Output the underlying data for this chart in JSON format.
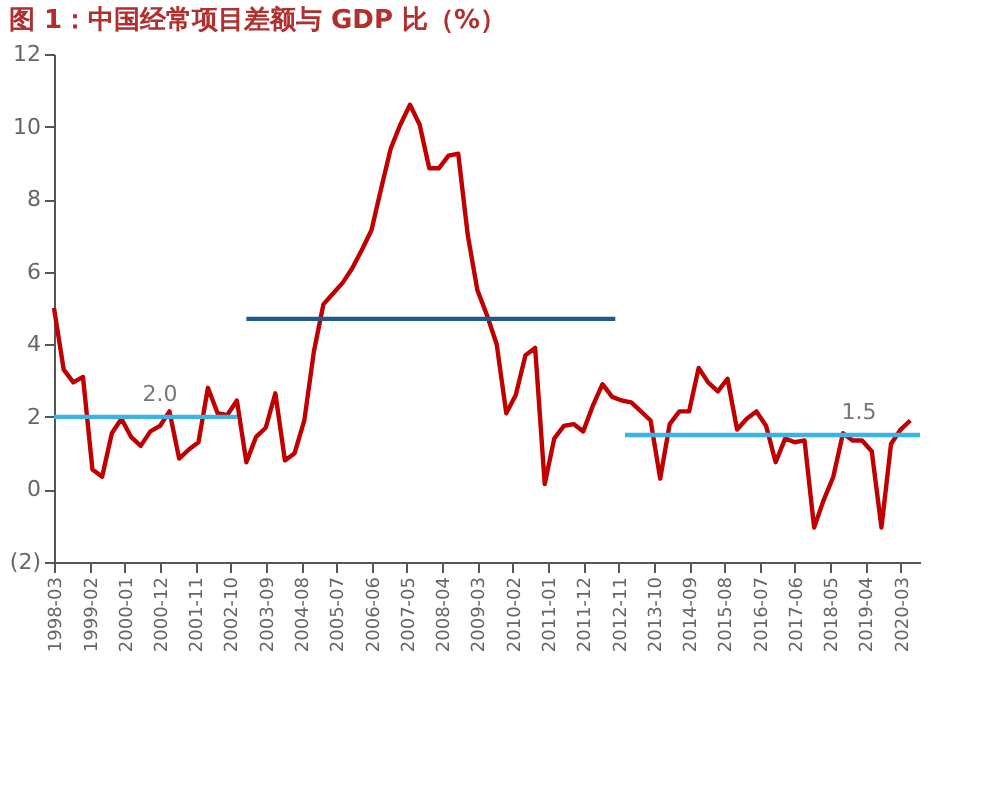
{
  "chart_data": {
    "type": "line",
    "title": "图 1：中国经常项目差额与 GDP 比（%）",
    "x": [
      "1998-03",
      "1998-06",
      "1998-09",
      "1998-12",
      "1999-03",
      "1999-06",
      "1999-09",
      "1999-12",
      "2000-03",
      "2000-06",
      "2000-09",
      "2000-12",
      "2001-03",
      "2001-06",
      "2001-09",
      "2001-12",
      "2002-03",
      "2002-06",
      "2002-09",
      "2002-12",
      "2003-03",
      "2003-06",
      "2003-09",
      "2003-12",
      "2004-03",
      "2004-06",
      "2004-09",
      "2004-12",
      "2005-03",
      "2005-06",
      "2005-09",
      "2005-12",
      "2006-03",
      "2006-06",
      "2006-09",
      "2006-12",
      "2007-03",
      "2007-06",
      "2007-09",
      "2007-12",
      "2008-03",
      "2008-06",
      "2008-09",
      "2008-12",
      "2009-03",
      "2009-06",
      "2009-09",
      "2009-12",
      "2010-03",
      "2010-06",
      "2010-09",
      "2010-12",
      "2011-03",
      "2011-06",
      "2011-09",
      "2011-12",
      "2012-03",
      "2012-06",
      "2012-09",
      "2012-12",
      "2013-03",
      "2013-06",
      "2013-09",
      "2013-12",
      "2014-03",
      "2014-06",
      "2014-09",
      "2014-12",
      "2015-03",
      "2015-06",
      "2015-09",
      "2015-12",
      "2016-03",
      "2016-06",
      "2016-09",
      "2016-12",
      "2017-03",
      "2017-06",
      "2017-09",
      "2017-12",
      "2018-03",
      "2018-06",
      "2018-09",
      "2018-12",
      "2019-03",
      "2019-06",
      "2019-09",
      "2019-12",
      "2020-03",
      "2020-06"
    ],
    "series": [
      {
        "color": "#c00000",
        "values": [
          5.0,
          3.3,
          2.95,
          3.1,
          0.55,
          0.35,
          1.55,
          1.95,
          1.45,
          1.2,
          1.6,
          1.75,
          2.15,
          0.85,
          1.1,
          1.3,
          2.8,
          2.1,
          2.05,
          2.45,
          0.75,
          1.45,
          1.7,
          2.65,
          0.8,
          1.0,
          1.9,
          3.8,
          5.1,
          5.4,
          5.7,
          6.1,
          6.6,
          7.15,
          8.3,
          9.4,
          10.05,
          10.6,
          10.05,
          8.85,
          8.85,
          9.2,
          9.25,
          7.0,
          5.5,
          4.8,
          4.0,
          2.1,
          2.6,
          3.7,
          3.9,
          0.15,
          1.4,
          1.75,
          1.8,
          1.6,
          2.3,
          2.9,
          2.55,
          2.45,
          2.4,
          2.15,
          1.9,
          0.3,
          1.8,
          2.15,
          2.15,
          3.35,
          2.95,
          2.7,
          3.05,
          1.65,
          1.95,
          2.15,
          1.75,
          0.75,
          1.4,
          1.3,
          1.35,
          -1.05,
          -0.3,
          0.35,
          1.55,
          1.35,
          1.35,
          1.05,
          -1.05,
          1.25,
          1.65,
          1.9
        ]
      },
      {
        "color": "#3ab4e4",
        "x": [
          "1998-03",
          "2002-12"
        ],
        "values": [
          2.0,
          2.0
        ]
      },
      {
        "color": "#1f5a8a",
        "x": [
          "2003-03",
          "2012-10"
        ],
        "values": [
          4.7,
          4.7
        ]
      },
      {
        "color": "#3ab4e4",
        "x": [
          "2013-01",
          "2020-09"
        ],
        "values": [
          1.5,
          1.5
        ]
      }
    ],
    "annotations": [
      {
        "text": "2.0",
        "x": "2000-12",
        "y": 2.0
      },
      {
        "text": "1.5",
        "x": "2019-02",
        "y": 1.5
      }
    ],
    "xlim": [
      "1998-03",
      "2020-09"
    ],
    "xticks": [
      "1998-03",
      "1999-02",
      "2000-01",
      "2000-12",
      "2001-11",
      "2002-10",
      "2003-09",
      "2004-08",
      "2005-07",
      "2006-06",
      "2007-05",
      "2008-04",
      "2009-03",
      "2010-02",
      "2011-01",
      "2011-12",
      "2012-11",
      "2013-10",
      "2014-09",
      "2015-08",
      "2016-07",
      "2017-06",
      "2018-05",
      "2019-04",
      "2020-03"
    ],
    "ylim": [
      -2,
      12
    ],
    "yticks": [
      {
        "value": -2,
        "label": "(2)"
      },
      0,
      2,
      4,
      6,
      8,
      10,
      12
    ],
    "grid": false,
    "marker": "none",
    "line_style": "solid"
  }
}
